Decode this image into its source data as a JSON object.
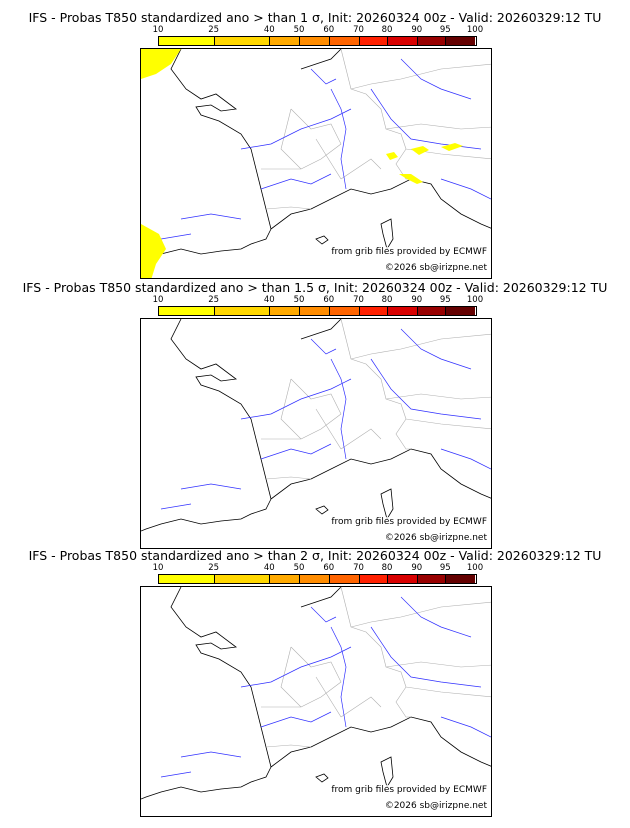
{
  "panels": [
    {
      "title": "IFS - Probas T850  standardized ano > than 1 σ, Init: 20260324 00z - Valid: 20260329:12 TU",
      "has_anomaly_areas": true
    },
    {
      "title": "IFS - Probas T850  standardized ano > than 1.5 σ, Init: 20260324 00z - Valid: 20260329:12 TU",
      "has_anomaly_areas": false
    },
    {
      "title": "IFS - Probas T850  standardized ano > than 2 σ, Init: 20260324 00z - Valid: 20260329:12 TU",
      "has_anomaly_areas": false
    }
  ],
  "colorbar": {
    "ticks": [
      "10",
      "25",
      "40",
      "50",
      "60",
      "70",
      "80",
      "90",
      "95",
      "100"
    ],
    "colors": [
      "#ffff00",
      "#ffd700",
      "#ffaa00",
      "#ff8c00",
      "#ff6400",
      "#ff2000",
      "#d80000",
      "#980000",
      "#640000"
    ]
  },
  "credits": {
    "source": "from grib files provided by ECMWF",
    "copyright": "©2026 sb@irizpne.net"
  },
  "colors": {
    "coast": "#000000",
    "rivers": "#3030ff",
    "borders": "#b0b0b0",
    "probability": "#ffff00"
  }
}
